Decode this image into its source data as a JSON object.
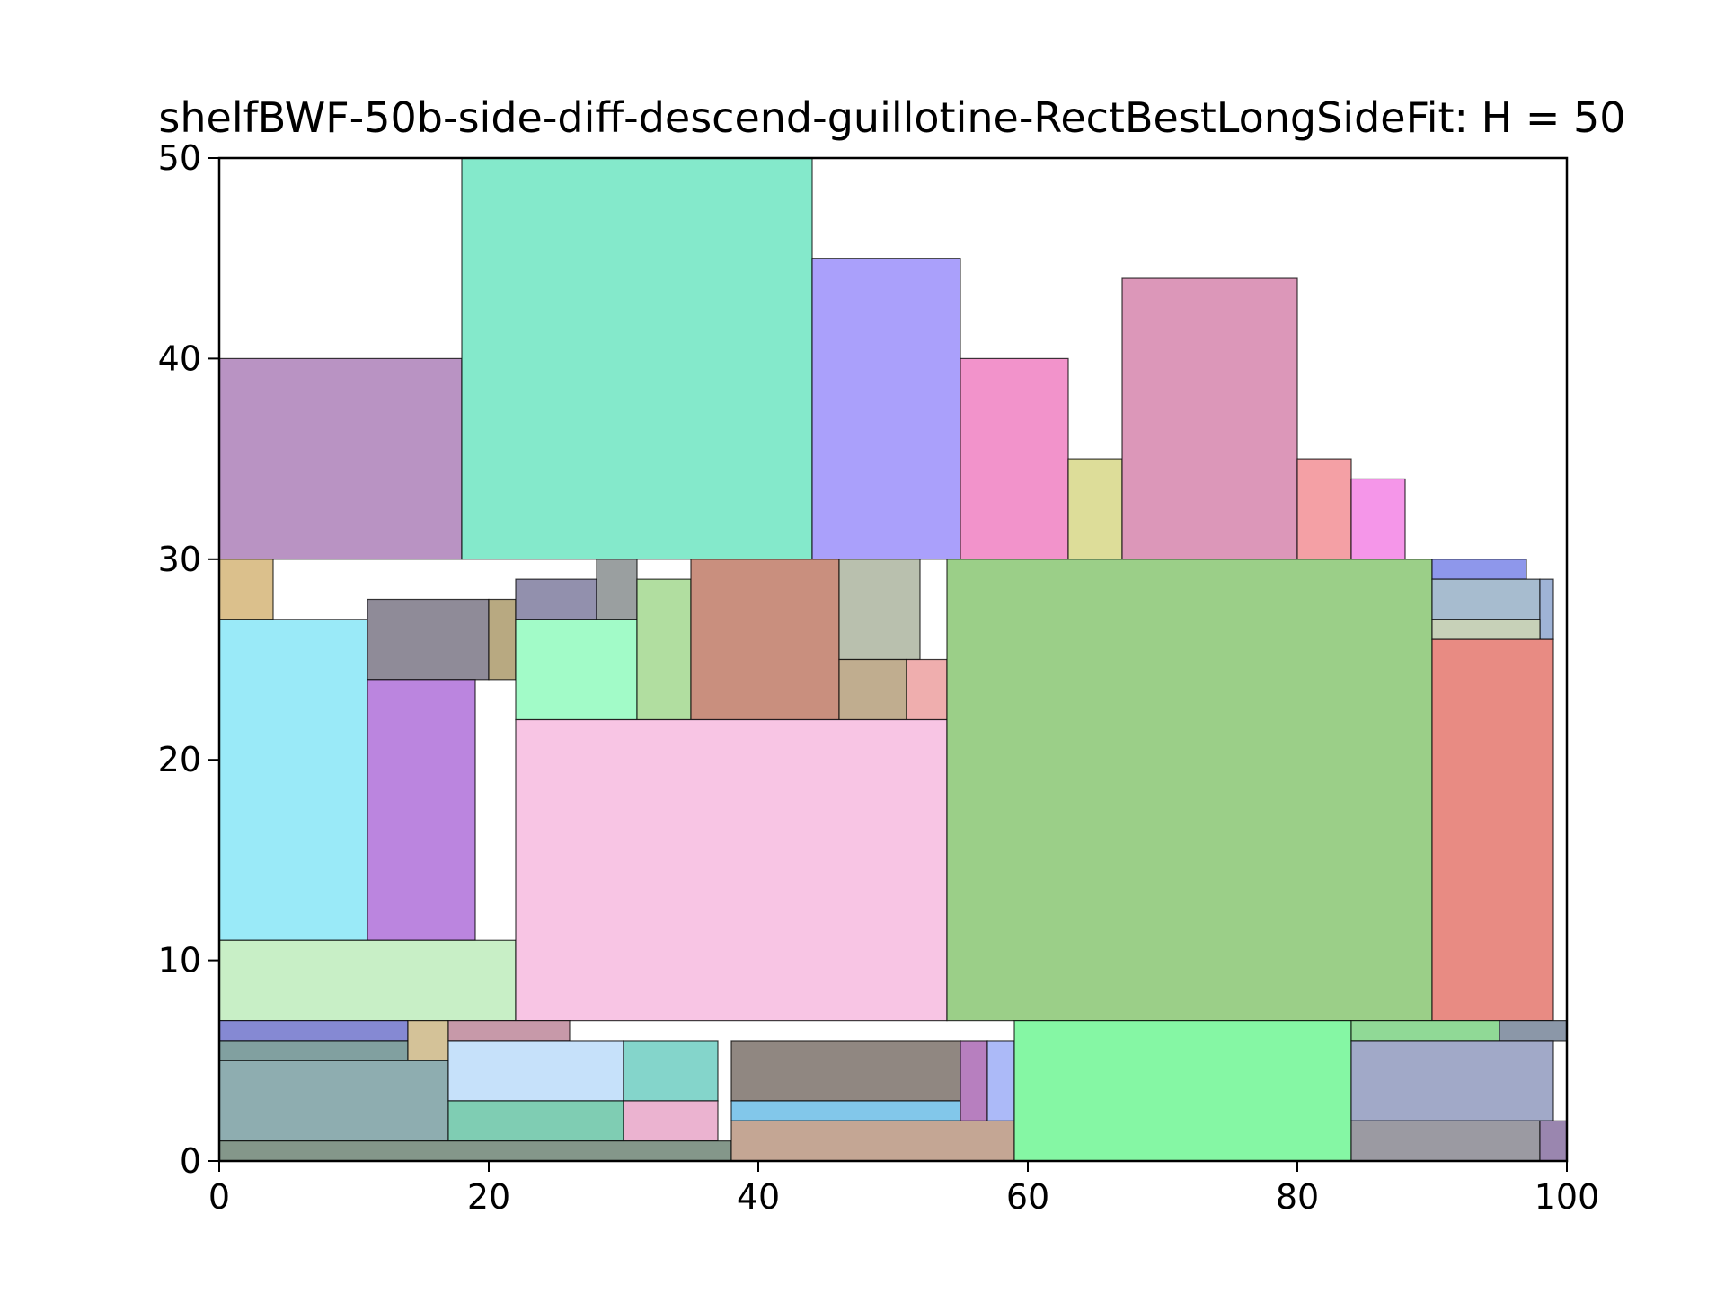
{
  "chart_data": {
    "type": "rectangle-packing",
    "title": "shelfBWF-50b-side-diff-descend-guillotine-RectBestLongSideFit: H = 50",
    "xlabel": "",
    "ylabel": "",
    "xlim": [
      0,
      100
    ],
    "ylim": [
      0,
      50
    ],
    "xticks": [
      0,
      20,
      40,
      60,
      80,
      100
    ],
    "yticks": [
      0,
      10,
      20,
      30,
      40,
      50
    ],
    "grid": false,
    "rects": [
      {
        "x": 0,
        "y": 30,
        "w": 18,
        "h": 10,
        "color": "#b993c3"
      },
      {
        "x": 18,
        "y": 30,
        "w": 26,
        "h": 20,
        "color": "#84e9cb"
      },
      {
        "x": 44,
        "y": 30,
        "w": 11,
        "h": 15,
        "color": "#aaa0fb"
      },
      {
        "x": 55,
        "y": 30,
        "w": 8,
        "h": 10,
        "color": "#f293cb"
      },
      {
        "x": 63,
        "y": 30,
        "w": 4,
        "h": 5,
        "color": "#dddd99"
      },
      {
        "x": 67,
        "y": 30,
        "w": 13,
        "h": 14,
        "color": "#dc97b9"
      },
      {
        "x": 80,
        "y": 30,
        "w": 4,
        "h": 5,
        "color": "#f4a0a5"
      },
      {
        "x": 84,
        "y": 30,
        "w": 4,
        "h": 4,
        "color": "#f596e9"
      },
      {
        "x": 0,
        "y": 27,
        "w": 4,
        "h": 3,
        "color": "#dbc08c"
      },
      {
        "x": 0,
        "y": 11,
        "w": 11,
        "h": 16,
        "color": "#9aeaf8"
      },
      {
        "x": 11,
        "y": 24,
        "w": 9,
        "h": 4,
        "color": "#8f8b98"
      },
      {
        "x": 20,
        "y": 24,
        "w": 2,
        "h": 4,
        "color": "#b8a981"
      },
      {
        "x": 11,
        "y": 11,
        "w": 8,
        "h": 13,
        "color": "#bb85df"
      },
      {
        "x": 0,
        "y": 7,
        "w": 22,
        "h": 4,
        "color": "#c8efc6"
      },
      {
        "x": 22,
        "y": 27,
        "w": 6,
        "h": 2,
        "color": "#9290ad"
      },
      {
        "x": 28,
        "y": 27,
        "w": 3,
        "h": 3,
        "color": "#9a9fa0"
      },
      {
        "x": 22,
        "y": 22,
        "w": 9,
        "h": 5,
        "color": "#a2fbc8"
      },
      {
        "x": 31,
        "y": 22,
        "w": 4,
        "h": 7,
        "color": "#b1dea0"
      },
      {
        "x": 35,
        "y": 22,
        "w": 11,
        "h": 8,
        "color": "#c98f7e"
      },
      {
        "x": 46,
        "y": 25,
        "w": 6,
        "h": 5,
        "color": "#b9c0ae"
      },
      {
        "x": 46,
        "y": 22,
        "w": 5,
        "h": 3,
        "color": "#c0ad8f"
      },
      {
        "x": 51,
        "y": 22,
        "w": 3,
        "h": 3,
        "color": "#efaeae"
      },
      {
        "x": 22,
        "y": 7,
        "w": 32,
        "h": 15,
        "color": "#f8c5e4"
      },
      {
        "x": 54,
        "y": 7,
        "w": 36,
        "h": 23,
        "color": "#9bcf88"
      },
      {
        "x": 90,
        "y": 29,
        "w": 7,
        "h": 1,
        "color": "#8e97eb"
      },
      {
        "x": 90,
        "y": 27,
        "w": 8,
        "h": 2,
        "color": "#a7bccf"
      },
      {
        "x": 98,
        "y": 26,
        "w": 1,
        "h": 3,
        "color": "#9fb3d6"
      },
      {
        "x": 90,
        "y": 26,
        "w": 8,
        "h": 1,
        "color": "#c7d1b8"
      },
      {
        "x": 90,
        "y": 7,
        "w": 9,
        "h": 19,
        "color": "#e88b83"
      },
      {
        "x": 0,
        "y": 6,
        "w": 14,
        "h": 1,
        "color": "#8589d3"
      },
      {
        "x": 0,
        "y": 5,
        "w": 14,
        "h": 1,
        "color": "#81a0a0"
      },
      {
        "x": 14,
        "y": 5,
        "w": 3,
        "h": 2,
        "color": "#d4c298"
      },
      {
        "x": 0,
        "y": 1,
        "w": 17,
        "h": 4,
        "color": "#8eadb0"
      },
      {
        "x": 17,
        "y": 6,
        "w": 9,
        "h": 1,
        "color": "#c799a9"
      },
      {
        "x": 17,
        "y": 3,
        "w": 13,
        "h": 3,
        "color": "#c6e1fa"
      },
      {
        "x": 30,
        "y": 3,
        "w": 7,
        "h": 3,
        "color": "#84d5cb"
      },
      {
        "x": 17,
        "y": 1,
        "w": 13,
        "h": 2,
        "color": "#7fcdb3"
      },
      {
        "x": 30,
        "y": 1,
        "w": 7,
        "h": 2,
        "color": "#ebb3d0"
      },
      {
        "x": 0,
        "y": 0,
        "w": 38,
        "h": 1,
        "color": "#84978a"
      },
      {
        "x": 38,
        "y": 3,
        "w": 17,
        "h": 3,
        "color": "#908781"
      },
      {
        "x": 38,
        "y": 2,
        "w": 17,
        "h": 1,
        "color": "#82c7ea"
      },
      {
        "x": 38,
        "y": 0,
        "w": 21,
        "h": 2,
        "color": "#c4a694"
      },
      {
        "x": 55,
        "y": 2,
        "w": 2,
        "h": 4,
        "color": "#b77fbf"
      },
      {
        "x": 57,
        "y": 2,
        "w": 2,
        "h": 4,
        "color": "#acbaf8"
      },
      {
        "x": 59,
        "y": 0,
        "w": 25,
        "h": 7,
        "color": "#85f7a4"
      },
      {
        "x": 84,
        "y": 6,
        "w": 11,
        "h": 1,
        "color": "#90d996"
      },
      {
        "x": 95,
        "y": 6,
        "w": 5,
        "h": 1,
        "color": "#8b97a8"
      },
      {
        "x": 84,
        "y": 2,
        "w": 15,
        "h": 4,
        "color": "#a1a9c8"
      },
      {
        "x": 84,
        "y": 0,
        "w": 14,
        "h": 2,
        "color": "#9b9aa2"
      },
      {
        "x": 98,
        "y": 0,
        "w": 2,
        "h": 2,
        "color": "#9a86af"
      }
    ]
  }
}
